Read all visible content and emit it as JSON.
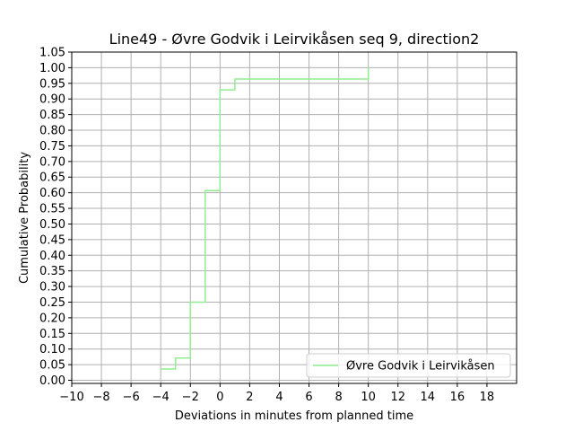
{
  "chart_data": {
    "type": "line",
    "step": true,
    "title": "Line49 - Øvre Godvik i Leirvikåsen seq 9, direction2",
    "xlabel": "Deviations in minutes from planned time",
    "ylabel": "Cumulative Probability",
    "xlim": [
      -10,
      20
    ],
    "ylim": [
      -0.01,
      1.05
    ],
    "x_ticks": [
      -10,
      -8,
      -6,
      -4,
      -2,
      0,
      2,
      4,
      6,
      8,
      10,
      12,
      14,
      16,
      18
    ],
    "x_tick_labels": [
      "−10",
      "−8",
      "−6",
      "−4",
      "−2",
      "0",
      "2",
      "4",
      "6",
      "8",
      "10",
      "12",
      "14",
      "16",
      "18"
    ],
    "y_ticks": [
      0,
      0.05,
      0.1,
      0.15,
      0.2,
      0.25,
      0.3,
      0.35,
      0.4,
      0.45,
      0.5,
      0.55,
      0.6,
      0.65,
      0.7,
      0.75,
      0.8,
      0.85,
      0.9,
      0.95,
      1.0,
      1.05
    ],
    "y_tick_labels": [
      "0.00",
      "0.05",
      "0.10",
      "0.15",
      "0.20",
      "0.25",
      "0.30",
      "0.35",
      "0.40",
      "0.45",
      "0.50",
      "0.55",
      "0.60",
      "0.65",
      "0.70",
      "0.75",
      "0.80",
      "0.85",
      "0.90",
      "0.95",
      "1.00",
      "1.05"
    ],
    "grid": true,
    "legend_position": "lower-right",
    "series": [
      {
        "name": "Øvre Godvik i Leirvikåsen",
        "color": "#90ee90",
        "x": [
          -4,
          -3,
          -2,
          -1,
          0,
          1,
          10
        ],
        "y": [
          0.036,
          0.071,
          0.25,
          0.607,
          0.929,
          0.964,
          1.0
        ]
      }
    ]
  }
}
